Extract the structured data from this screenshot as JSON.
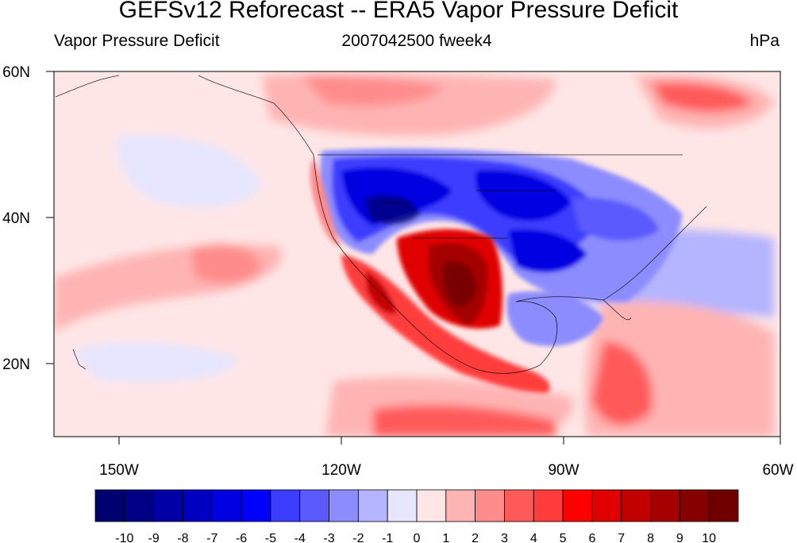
{
  "title": "GEFSv12 Reforecast -- ERA5 Vapor Pressure Deficit",
  "subtitle_left": "Vapor Pressure Deficit",
  "subtitle_center": "2007042500 fweek4",
  "subtitle_right": "hPa",
  "map": {
    "lat_labels": [
      "60N",
      "40N",
      "20N"
    ],
    "lon_labels": [
      "150W",
      "120W",
      "90W",
      "60W"
    ],
    "lat_range": [
      10,
      60
    ],
    "lon_range": [
      -159,
      -61
    ]
  },
  "colorbar": {
    "labels": [
      "-10",
      "-9",
      "-8",
      "-7",
      "-6",
      "-5",
      "-4",
      "-3",
      "-2",
      "-1",
      "0",
      "1",
      "2",
      "3",
      "4",
      "5",
      "6",
      "7",
      "8",
      "9",
      "10"
    ],
    "colors": [
      "#00006e",
      "#000087",
      "#0000a5",
      "#0000c3",
      "#0000e1",
      "#0000ff",
      "#3c3cff",
      "#5a5aff",
      "#8c8cff",
      "#b4b4ff",
      "#e6e6ff",
      "#ffe6e6",
      "#ffb4b4",
      "#ff8c8c",
      "#ff5a5a",
      "#ff3c3c",
      "#ff0000",
      "#e10000",
      "#c30000",
      "#a50000",
      "#870000",
      "#6e0000"
    ]
  }
}
